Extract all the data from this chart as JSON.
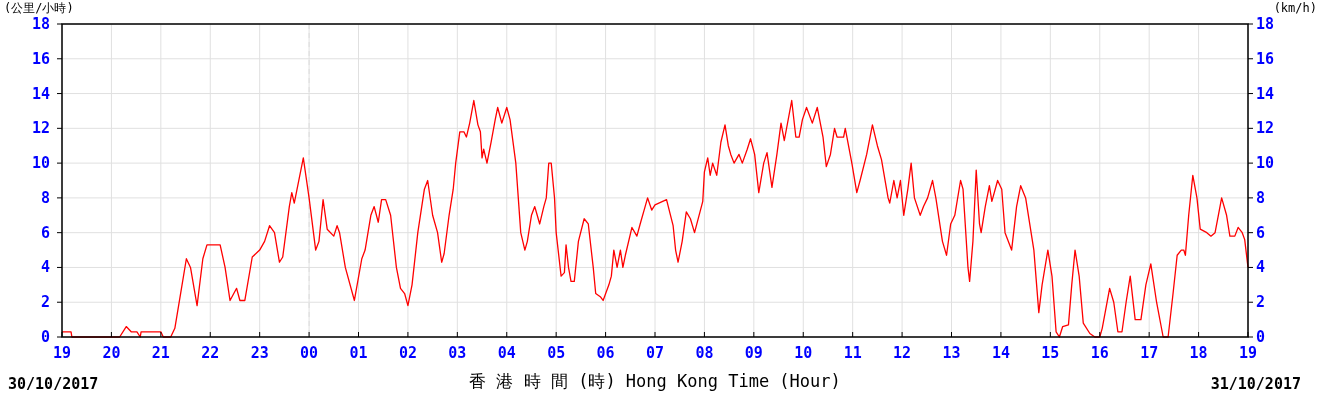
{
  "chart_data": {
    "type": "line",
    "ylabel": "(公里/小時)",
    "y2label": "(km/h)",
    "xlabel": "香 港 時 間 (時)  Hong Kong Time (Hour)",
    "annotations": [
      "30/10/2017",
      "31/10/2017"
    ],
    "xlim": [
      "2017-10-30T19:00",
      "2017-10-31T19:00"
    ],
    "xticks": [
      {
        "value": "2017-10-30T19:00",
        "label": "19"
      },
      {
        "value": "2017-10-30T20:00",
        "label": "20"
      },
      {
        "value": "2017-10-30T21:00",
        "label": "21"
      },
      {
        "value": "2017-10-30T22:00",
        "label": "22"
      },
      {
        "value": "2017-10-30T23:00",
        "label": "23"
      },
      {
        "value": "2017-10-31T00:00",
        "label": "00"
      },
      {
        "value": "2017-10-31T01:00",
        "label": "01"
      },
      {
        "value": "2017-10-31T02:00",
        "label": "02"
      },
      {
        "value": "2017-10-31T03:00",
        "label": "03"
      },
      {
        "value": "2017-10-31T04:00",
        "label": "04"
      },
      {
        "value": "2017-10-31T05:00",
        "label": "05"
      },
      {
        "value": "2017-10-31T06:00",
        "label": "06"
      },
      {
        "value": "2017-10-31T07:00",
        "label": "07"
      },
      {
        "value": "2017-10-31T08:00",
        "label": "08"
      },
      {
        "value": "2017-10-31T09:00",
        "label": "09"
      },
      {
        "value": "2017-10-31T10:00",
        "label": "10"
      },
      {
        "value": "2017-10-31T11:00",
        "label": "11"
      },
      {
        "value": "2017-10-31T12:00",
        "label": "12"
      },
      {
        "value": "2017-10-31T13:00",
        "label": "13"
      },
      {
        "value": "2017-10-31T14:00",
        "label": "14"
      },
      {
        "value": "2017-10-31T15:00",
        "label": "15"
      },
      {
        "value": "2017-10-31T16:00",
        "label": "16"
      },
      {
        "value": "2017-10-31T17:00",
        "label": "17"
      },
      {
        "value": "2017-10-31T18:00",
        "label": "18"
      },
      {
        "value": "2017-10-31T19:00",
        "label": "19"
      }
    ],
    "ylim": [
      0,
      18
    ],
    "yticks": [
      0,
      2,
      4,
      6,
      8,
      10,
      12,
      14,
      16,
      18
    ],
    "y2lim": [
      0,
      18
    ],
    "y2ticks": [
      0,
      2,
      4,
      6,
      8,
      10,
      12,
      14,
      16,
      18
    ],
    "grid": true,
    "marker": "none",
    "line_style": "solid",
    "ref_lines": [
      {
        "axis": "x",
        "value": "2017-10-31T00:00",
        "color": "#dddddd",
        "line_style": "dashed"
      }
    ],
    "series": [
      {
        "color": "#ff0000",
        "x": [
          "2017-10-30T19:00",
          "2017-10-30T19:11",
          "2017-10-30T19:12",
          "2017-10-30T20:10",
          "2017-10-30T20:18",
          "2017-10-30T20:24",
          "2017-10-30T20:31",
          "2017-10-30T20:35",
          "2017-10-30T20:36",
          "2017-10-30T21:00",
          "2017-10-30T21:03",
          "2017-10-30T21:12",
          "2017-10-30T21:17",
          "2017-10-30T21:24",
          "2017-10-30T21:31",
          "2017-10-30T21:36",
          "2017-10-30T21:44",
          "2017-10-30T21:51",
          "2017-10-30T21:56",
          "2017-10-30T22:12",
          "2017-10-30T22:18",
          "2017-10-30T22:24",
          "2017-10-30T22:32",
          "2017-10-30T22:36",
          "2017-10-30T22:42",
          "2017-10-30T22:51",
          "2017-10-30T23:00",
          "2017-10-30T23:06",
          "2017-10-30T23:12",
          "2017-10-30T23:18",
          "2017-10-30T23:24",
          "2017-10-30T23:28",
          "2017-10-30T23:36",
          "2017-10-30T23:39",
          "2017-10-30T23:42",
          "2017-10-30T23:53",
          "2017-10-31T00:00",
          "2017-10-31T00:08",
          "2017-10-31T00:12",
          "2017-10-31T00:17",
          "2017-10-31T00:22",
          "2017-10-31T00:30",
          "2017-10-31T00:34",
          "2017-10-31T00:37",
          "2017-10-31T00:44",
          "2017-10-31T00:55",
          "2017-10-31T01:04",
          "2017-10-31T01:08",
          "2017-10-31T01:15",
          "2017-10-31T01:19",
          "2017-10-31T01:24",
          "2017-10-31T01:28",
          "2017-10-31T01:33",
          "2017-10-31T01:39",
          "2017-10-31T01:46",
          "2017-10-31T01:51",
          "2017-10-31T01:56",
          "2017-10-31T02:00",
          "2017-10-31T02:05",
          "2017-10-31T02:12",
          "2017-10-31T02:20",
          "2017-10-31T02:24",
          "2017-10-31T02:30",
          "2017-10-31T02:36",
          "2017-10-31T02:41",
          "2017-10-31T02:44",
          "2017-10-31T02:50",
          "2017-10-31T02:55",
          "2017-10-31T02:58",
          "2017-10-31T03:03",
          "2017-10-31T03:08",
          "2017-10-31T03:11",
          "2017-10-31T03:15",
          "2017-10-31T03:20",
          "2017-10-31T03:25",
          "2017-10-31T03:28",
          "2017-10-31T03:30",
          "2017-10-31T03:32",
          "2017-10-31T03:36",
          "2017-10-31T03:41",
          "2017-10-31T03:46",
          "2017-10-31T03:49",
          "2017-10-31T03:54",
          "2017-10-31T04:00",
          "2017-10-31T04:04",
          "2017-10-31T04:11",
          "2017-10-31T04:14",
          "2017-10-31T04:17",
          "2017-10-31T04:22",
          "2017-10-31T04:25",
          "2017-10-31T04:30",
          "2017-10-31T04:34",
          "2017-10-31T04:37",
          "2017-10-31T04:40",
          "2017-10-31T04:45",
          "2017-10-31T04:48",
          "2017-10-31T04:51",
          "2017-10-31T04:54",
          "2017-10-31T04:58",
          "2017-10-31T05:00",
          "2017-10-31T05:06",
          "2017-10-31T05:10",
          "2017-10-31T05:12",
          "2017-10-31T05:15",
          "2017-10-31T05:18",
          "2017-10-31T05:22",
          "2017-10-31T05:27",
          "2017-10-31T05:34",
          "2017-10-31T05:39",
          "2017-10-31T05:45",
          "2017-10-31T05:48",
          "2017-10-31T05:54",
          "2017-10-31T05:57",
          "2017-10-31T06:04",
          "2017-10-31T06:07",
          "2017-10-31T06:10",
          "2017-10-31T06:14",
          "2017-10-31T06:18",
          "2017-10-31T06:21",
          "2017-10-31T06:24",
          "2017-10-31T06:32",
          "2017-10-31T06:38",
          "2017-10-31T06:42",
          "2017-10-31T06:48",
          "2017-10-31T06:51",
          "2017-10-31T06:56",
          "2017-10-31T07:00",
          "2017-10-31T07:14",
          "2017-10-31T07:22",
          "2017-10-31T07:25",
          "2017-10-31T07:28",
          "2017-10-31T07:33",
          "2017-10-31T07:38",
          "2017-10-31T07:43",
          "2017-10-31T07:48",
          "2017-10-31T07:58",
          "2017-10-31T08:00",
          "2017-10-31T08:04",
          "2017-10-31T08:07",
          "2017-10-31T08:10",
          "2017-10-31T08:15",
          "2017-10-31T08:20",
          "2017-10-31T08:25",
          "2017-10-31T08:29",
          "2017-10-31T08:32",
          "2017-10-31T08:36",
          "2017-10-31T08:42",
          "2017-10-31T08:46",
          "2017-10-31T08:52",
          "2017-10-31T08:56",
          "2017-10-31T09:01",
          "2017-10-31T09:06",
          "2017-10-31T09:12",
          "2017-10-31T09:16",
          "2017-10-31T09:22",
          "2017-10-31T09:28",
          "2017-10-31T09:33",
          "2017-10-31T09:37",
          "2017-10-31T09:46",
          "2017-10-31T09:51",
          "2017-10-31T09:55",
          "2017-10-31T09:59",
          "2017-10-31T10:04",
          "2017-10-31T10:11",
          "2017-10-31T10:17",
          "2017-10-31T10:24",
          "2017-10-31T10:28",
          "2017-10-31T10:33",
          "2017-10-31T10:38",
          "2017-10-31T10:41",
          "2017-10-31T10:49",
          "2017-10-31T10:51",
          "2017-10-31T10:59",
          "2017-10-31T11:05",
          "2017-10-31T11:09",
          "2017-10-31T11:17",
          "2017-10-31T11:24",
          "2017-10-31T11:30",
          "2017-10-31T11:35",
          "2017-10-31T11:43",
          "2017-10-31T11:45",
          "2017-10-31T11:50",
          "2017-10-31T11:54",
          "2017-10-31T11:58",
          "2017-10-31T12:02",
          "2017-10-31T12:07",
          "2017-10-31T12:11",
          "2017-10-31T12:15",
          "2017-10-31T12:22",
          "2017-10-31T12:26",
          "2017-10-31T12:31",
          "2017-10-31T12:37",
          "2017-10-31T12:41",
          "2017-10-31T12:49",
          "2017-10-31T12:54",
          "2017-10-31T12:59",
          "2017-10-31T13:04",
          "2017-10-31T13:11",
          "2017-10-31T13:14",
          "2017-10-31T13:20",
          "2017-10-31T13:22",
          "2017-10-31T13:26",
          "2017-10-31T13:30",
          "2017-10-31T13:34",
          "2017-10-31T13:36",
          "2017-10-31T13:41",
          "2017-10-31T13:46",
          "2017-10-31T13:49",
          "2017-10-31T13:56",
          "2017-10-31T14:01",
          "2017-10-31T14:05",
          "2017-10-31T14:13",
          "2017-10-31T14:19",
          "2017-10-31T14:24",
          "2017-10-31T14:30",
          "2017-10-31T14:40",
          "2017-10-31T14:46",
          "2017-10-31T14:50",
          "2017-10-31T14:57",
          "2017-10-31T15:02",
          "2017-10-31T15:07",
          "2017-10-31T15:11",
          "2017-10-31T15:15",
          "2017-10-31T15:22",
          "2017-10-31T15:26",
          "2017-10-31T15:30",
          "2017-10-31T15:35",
          "2017-10-31T15:40",
          "2017-10-31T15:48",
          "2017-10-31T15:54",
          "2017-10-31T16:00",
          "2017-10-31T16:03",
          "2017-10-31T16:12",
          "2017-10-31T16:17",
          "2017-10-31T16:22",
          "2017-10-31T16:27",
          "2017-10-31T16:32",
          "2017-10-31T16:37",
          "2017-10-31T16:43",
          "2017-10-31T16:50",
          "2017-10-31T16:56",
          "2017-10-31T17:02",
          "2017-10-31T17:09",
          "2017-10-31T17:17",
          "2017-10-31T17:23",
          "2017-10-31T17:29",
          "2017-10-31T17:34",
          "2017-10-31T17:39",
          "2017-10-31T17:42",
          "2017-10-31T17:44",
          "2017-10-31T17:48",
          "2017-10-31T17:53",
          "2017-10-31T17:58",
          "2017-10-31T18:02",
          "2017-10-31T18:10",
          "2017-10-31T18:15",
          "2017-10-31T18:20",
          "2017-10-31T18:24",
          "2017-10-31T18:28",
          "2017-10-31T18:34",
          "2017-10-31T18:38",
          "2017-10-31T18:44",
          "2017-10-31T18:48",
          "2017-10-31T18:53",
          "2017-10-31T18:56",
          "2017-10-31T19:00"
        ],
        "values": [
          0.3,
          0.3,
          0,
          0,
          0.6,
          0.3,
          0.3,
          0,
          0.3,
          0.3,
          0,
          0,
          0.5,
          2.5,
          4.5,
          4.0,
          1.8,
          4.5,
          5.3,
          5.3,
          4.0,
          2.1,
          2.8,
          2.1,
          2.1,
          4.6,
          5.0,
          5.5,
          6.4,
          6.0,
          4.3,
          4.6,
          7.5,
          8.3,
          7.7,
          10.3,
          8.0,
          5.0,
          5.5,
          7.9,
          6.2,
          5.8,
          6.4,
          6.0,
          4.0,
          2.1,
          4.5,
          5.0,
          7.0,
          7.5,
          6.6,
          7.9,
          7.9,
          7.0,
          4.0,
          2.8,
          2.5,
          1.8,
          3.0,
          6.0,
          8.5,
          9.0,
          7.0,
          6.0,
          4.3,
          4.8,
          7.0,
          8.5,
          10.0,
          11.8,
          11.8,
          11.5,
          12.3,
          13.6,
          12.2,
          11.8,
          10.3,
          10.8,
          10.0,
          11.2,
          12.5,
          13.2,
          12.3,
          13.2,
          12.5,
          10.0,
          8.0,
          6.0,
          5.0,
          5.5,
          7.0,
          7.5,
          7.0,
          6.5,
          7.5,
          8.0,
          10.0,
          10.0,
          8.0,
          6.0,
          3.5,
          3.7,
          5.3,
          4.0,
          3.2,
          3.2,
          5.5,
          6.8,
          6.5,
          4.0,
          2.5,
          2.3,
          2.1,
          3.0,
          3.5,
          5.0,
          4.0,
          5.0,
          4.0,
          4.7,
          6.3,
          5.8,
          6.5,
          7.5,
          8.0,
          7.3,
          7.6,
          7.9,
          6.4,
          5.0,
          4.3,
          5.5,
          7.2,
          6.8,
          6.0,
          7.8,
          9.5,
          10.3,
          9.3,
          10.0,
          9.3,
          11.2,
          12.2,
          11.0,
          10.5,
          10.0,
          10.5,
          10.0,
          10.8,
          11.4,
          10.5,
          8.3,
          10.0,
          10.6,
          8.6,
          10.5,
          12.3,
          11.3,
          13.6,
          11.5,
          11.5,
          12.5,
          13.2,
          12.3,
          13.2,
          11.5,
          9.8,
          10.5,
          12.0,
          11.5,
          11.5,
          12.0,
          10.0,
          8.3,
          9.0,
          10.5,
          12.2,
          11.0,
          10.2,
          8.0,
          7.7,
          9.0,
          8.0,
          9.0,
          7.0,
          8.5,
          10.0,
          8.0,
          7.0,
          7.5,
          8.0,
          9.0,
          8.0,
          5.5,
          4.7,
          6.5,
          7.0,
          9.0,
          8.5,
          4.0,
          3.2,
          5.5,
          9.6,
          6.5,
          6.0,
          7.5,
          8.7,
          7.8,
          9.0,
          8.5,
          6.0,
          5.0,
          7.5,
          8.7,
          8.0,
          5.0,
          1.4,
          3.0,
          5.0,
          3.5,
          0.3,
          0,
          0.6,
          0.7,
          3.0,
          5.0,
          3.5,
          0.8,
          0.2,
          0,
          0,
          0.5,
          2.8,
          2.0,
          0.3,
          0.3,
          2.0,
          3.5,
          1.0,
          1.0,
          3.0,
          4.2,
          2.0,
          0,
          0,
          2.5,
          4.7,
          5.0,
          5.0,
          4.7,
          7.0,
          9.3,
          8.0,
          6.2,
          6.0,
          5.8,
          6.0,
          7.0,
          8.0,
          7.0,
          5.8,
          5.8,
          6.3,
          6.0,
          5.6,
          4.0
        ]
      }
    ]
  }
}
